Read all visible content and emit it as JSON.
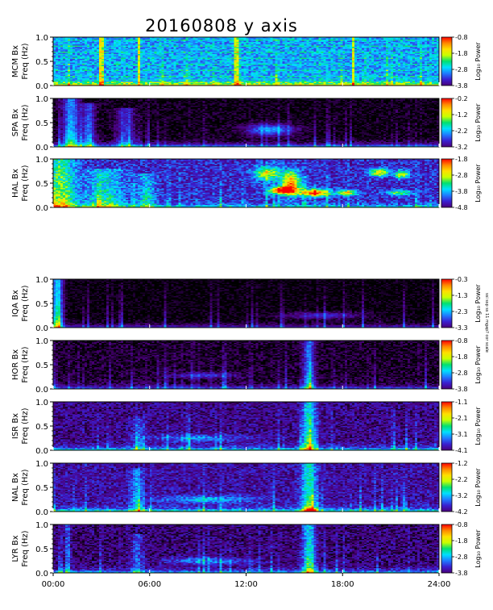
{
  "title": "20160808 y axis",
  "side_note": "ssi ssp ss 11 mgap? cor scale",
  "time_axis": {
    "range_hours": [
      0,
      24
    ],
    "tick_hours": [
      0,
      6,
      12,
      18,
      24
    ],
    "tick_labels": [
      "00:00",
      "06:00",
      "12:00",
      "18:00",
      "24:00"
    ]
  },
  "freq_axis": {
    "range_hz": [
      0,
      1
    ],
    "tick_values": [
      0.0,
      0.5,
      1.0
    ],
    "tick_labels": [
      "0.0",
      "0.5",
      "1.0"
    ],
    "label": "Freq (Hz)"
  },
  "colorbar_label": "Log₁₀ Power",
  "colormap": [
    "#000000",
    "#4a007a",
    "#3a1fd0",
    "#1f7bff",
    "#00e0ff",
    "#00e070",
    "#c8ff00",
    "#ffe000",
    "#ff8800",
    "#ff0000"
  ],
  "chart_data": [
    {
      "type": "heatmap",
      "station": "MCM",
      "component": "Bx",
      "ylabel": "MCM Bx",
      "colorbar_ticks": [
        "-0.8",
        "-1.8",
        "-2.8",
        "-3.8"
      ],
      "colorbar_range": [
        -3.8,
        -0.8
      ],
      "features": {
        "base": 0.38,
        "noise": 0.12,
        "lowfreq": 0.45,
        "lines": true,
        "ridges": [],
        "blobs": []
      }
    },
    {
      "type": "heatmap",
      "station": "SPA",
      "component": "Bx",
      "ylabel": "SPA Bx",
      "colorbar_ticks": [
        "-0.2",
        "-1.2",
        "-2.2",
        "-3.2"
      ],
      "colorbar_range": [
        -3.2,
        -0.2
      ],
      "features": {
        "base": 0.02,
        "noise": 0.06,
        "lowfreq": 0.4,
        "lines": false,
        "ridges": [
          {
            "t": 1.1,
            "w": 0.5,
            "a": 0.55,
            "top": 1.0
          },
          {
            "t": 2.2,
            "w": 0.4,
            "a": 0.4,
            "top": 0.9
          },
          {
            "t": 4.5,
            "w": 0.6,
            "a": 0.3,
            "top": 0.8
          }
        ],
        "blobs": [
          {
            "t": 13.5,
            "f": 0.35,
            "rt": 1.5,
            "rf": 0.12,
            "a": 0.35
          }
        ]
      }
    },
    {
      "type": "heatmap",
      "station": "HAL",
      "component": "Bx",
      "ylabel": "HAL Bx",
      "colorbar_ticks": [
        "-1.8",
        "-2.8",
        "-3.8",
        "-4.8"
      ],
      "colorbar_range": [
        -4.8,
        -1.8
      ],
      "features": {
        "base": 0.22,
        "noise": 0.12,
        "lowfreq": 0.3,
        "lines": false,
        "ridges": [
          {
            "t": 0.5,
            "w": 0.9,
            "a": 0.55,
            "top": 1.0
          },
          {
            "t": 3.2,
            "w": 1.2,
            "a": 0.35,
            "top": 0.8
          },
          {
            "t": 5.8,
            "w": 0.6,
            "a": 0.3,
            "top": 0.7
          }
        ],
        "blobs": [
          {
            "t": 13.3,
            "f": 0.7,
            "rt": 0.8,
            "rf": 0.15,
            "a": 0.5
          },
          {
            "t": 14.8,
            "f": 0.5,
            "rt": 0.6,
            "rf": 0.25,
            "a": 0.65
          },
          {
            "t": 14.2,
            "f": 0.35,
            "rt": 0.8,
            "rf": 0.08,
            "a": 0.75
          },
          {
            "t": 16.3,
            "f": 0.3,
            "rt": 0.9,
            "rf": 0.08,
            "a": 0.75
          },
          {
            "t": 18.3,
            "f": 0.3,
            "rt": 0.6,
            "rf": 0.06,
            "a": 0.55
          },
          {
            "t": 20.3,
            "f": 0.72,
            "rt": 0.6,
            "rf": 0.08,
            "a": 0.55
          },
          {
            "t": 21.7,
            "f": 0.68,
            "rt": 0.4,
            "rf": 0.08,
            "a": 0.55
          },
          {
            "t": 21.5,
            "f": 0.3,
            "rt": 0.8,
            "rf": 0.06,
            "a": 0.4
          }
        ]
      }
    },
    {
      "type": "heatmap",
      "station": "IQA",
      "component": "Bx",
      "ylabel": "IQA Bx",
      "colorbar_ticks": [
        "-0.3",
        "-1.3",
        "-2.3",
        "-3.3"
      ],
      "colorbar_range": [
        -3.3,
        -0.3
      ],
      "features": {
        "base": 0.01,
        "noise": 0.05,
        "lowfreq": 0.25,
        "lines": false,
        "ridges": [
          {
            "t": 0.25,
            "w": 0.35,
            "a": 0.7,
            "top": 1.0
          }
        ],
        "blobs": [
          {
            "t": 16.8,
            "f": 0.25,
            "rt": 2.5,
            "rf": 0.07,
            "a": 0.2
          }
        ]
      }
    },
    {
      "type": "heatmap",
      "station": "HOR",
      "component": "Bx",
      "ylabel": "HOR Bx",
      "colorbar_ticks": [
        "-0.8",
        "-1.8",
        "-2.8",
        "-3.8"
      ],
      "colorbar_range": [
        -3.8,
        -0.8
      ],
      "features": {
        "base": 0.04,
        "noise": 0.07,
        "lowfreq": 0.3,
        "lines": false,
        "ridges": [
          {
            "t": 15.9,
            "w": 0.35,
            "a": 0.45,
            "top": 1.0
          }
        ],
        "blobs": [
          {
            "t": 9.5,
            "f": 0.28,
            "rt": 2.0,
            "rf": 0.06,
            "a": 0.2
          }
        ]
      }
    },
    {
      "type": "heatmap",
      "station": "ISR",
      "component": "Bx",
      "ylabel": "ISR Bx",
      "colorbar_ticks": [
        "-1.1",
        "-2.1",
        "-3.1",
        "-4.1"
      ],
      "colorbar_range": [
        -4.1,
        -1.1
      ],
      "features": {
        "base": 0.13,
        "noise": 0.1,
        "lowfreq": 0.4,
        "lines": false,
        "ridges": [
          {
            "t": 15.9,
            "w": 0.45,
            "a": 0.55,
            "top": 1.0
          },
          {
            "t": 5.3,
            "w": 0.4,
            "a": 0.2,
            "top": 0.7
          }
        ],
        "blobs": [
          {
            "t": 9.0,
            "f": 0.25,
            "rt": 3.0,
            "rf": 0.07,
            "a": 0.22
          }
        ]
      }
    },
    {
      "type": "heatmap",
      "station": "NAL",
      "component": "Bx",
      "ylabel": "NAL Bx",
      "colorbar_ticks": [
        "-1.2",
        "-2.2",
        "-3.2",
        "-4.2"
      ],
      "colorbar_range": [
        -4.2,
        -1.2
      ],
      "features": {
        "base": 0.16,
        "noise": 0.1,
        "lowfreq": 0.45,
        "lines": false,
        "ridges": [
          {
            "t": 15.9,
            "w": 0.45,
            "a": 0.55,
            "top": 1.0
          },
          {
            "t": 5.2,
            "w": 0.35,
            "a": 0.3,
            "top": 0.9
          }
        ],
        "blobs": [
          {
            "t": 9.5,
            "f": 0.25,
            "rt": 3.0,
            "rf": 0.07,
            "a": 0.25
          },
          {
            "t": 16.0,
            "f": 0.02,
            "rt": 0.3,
            "rf": 0.03,
            "a": 0.8
          }
        ]
      }
    },
    {
      "type": "heatmap",
      "station": "LYR",
      "component": "Bx",
      "ylabel": "LYR Bx",
      "colorbar_ticks": [
        "-0.8",
        "-1.8",
        "-2.8",
        "-3.8"
      ],
      "colorbar_range": [
        -3.8,
        -0.8
      ],
      "features": {
        "base": 0.11,
        "noise": 0.1,
        "lowfreq": 0.35,
        "lines": false,
        "ridges": [
          {
            "t": 15.9,
            "w": 0.4,
            "a": 0.55,
            "top": 1.0
          },
          {
            "t": 0.9,
            "w": 0.15,
            "a": 0.35,
            "top": 1.0
          },
          {
            "t": 5.2,
            "w": 0.35,
            "a": 0.25,
            "top": 0.8
          }
        ],
        "blobs": [
          {
            "t": 9.5,
            "f": 0.25,
            "rt": 2.5,
            "rf": 0.07,
            "a": 0.25
          }
        ]
      }
    }
  ]
}
